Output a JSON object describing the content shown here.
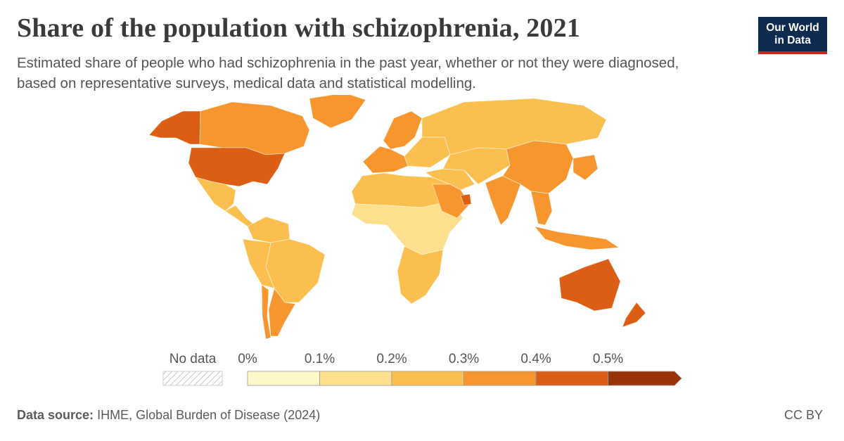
{
  "header": {
    "title": "Share of the population with schizophrenia, 2021",
    "subtitle": "Estimated share of people who had schizophrenia in the past year, whether or not they were diagnosed, based on representative surveys, medical data and statistical modelling."
  },
  "logo": {
    "line1": "Our World",
    "line2": "in Data"
  },
  "chart_data": {
    "type": "choropleth",
    "year": "2021",
    "legend": {
      "no_data_label": "No data",
      "bins": [
        {
          "from": "0%",
          "to": "0.1%",
          "color": "#fef7c8"
        },
        {
          "from": "0.1%",
          "to": "0.2%",
          "color": "#fde08d"
        },
        {
          "from": "0.2%",
          "to": "0.3%",
          "color": "#fbbf4f"
        },
        {
          "from": "0.3%",
          "to": "0.4%",
          "color": "#f7962e"
        },
        {
          "from": "0.4%",
          "to": "0.5%",
          "color": "#dc5e14"
        },
        {
          "from": "0.5%",
          "to": "",
          "color": "#9a330a"
        }
      ],
      "ticks": [
        "0%",
        "0.1%",
        "0.2%",
        "0.3%",
        "0.4%",
        "0.5%"
      ]
    },
    "regions": [
      {
        "name": "Alaska",
        "bin": 4
      },
      {
        "name": "Canada",
        "bin": 3
      },
      {
        "name": "Greenland",
        "bin": 3
      },
      {
        "name": "United States",
        "bin": 4
      },
      {
        "name": "Mexico",
        "bin": 2
      },
      {
        "name": "Central America",
        "bin": 2
      },
      {
        "name": "Colombia & Venezuela",
        "bin": 2
      },
      {
        "name": "Brazil",
        "bin": 2
      },
      {
        "name": "Peru & Bolivia",
        "bin": 2
      },
      {
        "name": "Argentina",
        "bin": 3
      },
      {
        "name": "Chile",
        "bin": 3
      },
      {
        "name": "Western Europe",
        "bin": 3
      },
      {
        "name": "Scandinavia",
        "bin": 3
      },
      {
        "name": "Eastern Europe",
        "bin": 2
      },
      {
        "name": "Russia",
        "bin": 2
      },
      {
        "name": "North Africa",
        "bin": 2
      },
      {
        "name": "Sub-Saharan Africa",
        "bin": 1
      },
      {
        "name": "Southern Africa",
        "bin": 2
      },
      {
        "name": "Middle East",
        "bin": 2
      },
      {
        "name": "Saudi Arabia & Gulf",
        "bin": 3
      },
      {
        "name": "UAE",
        "bin": 4
      },
      {
        "name": "Central Asia",
        "bin": 2
      },
      {
        "name": "India",
        "bin": 3
      },
      {
        "name": "China",
        "bin": 3
      },
      {
        "name": "Japan & Korea",
        "bin": 3
      },
      {
        "name": "Southeast Asia",
        "bin": 3
      },
      {
        "name": "Indonesia",
        "bin": 3
      },
      {
        "name": "Australia",
        "bin": 4
      },
      {
        "name": "New Zealand",
        "bin": 4
      }
    ]
  },
  "footer": {
    "source_label": "Data source:",
    "source_text": "IHME, Global Burden of Disease (2024)",
    "license": "CC BY"
  }
}
